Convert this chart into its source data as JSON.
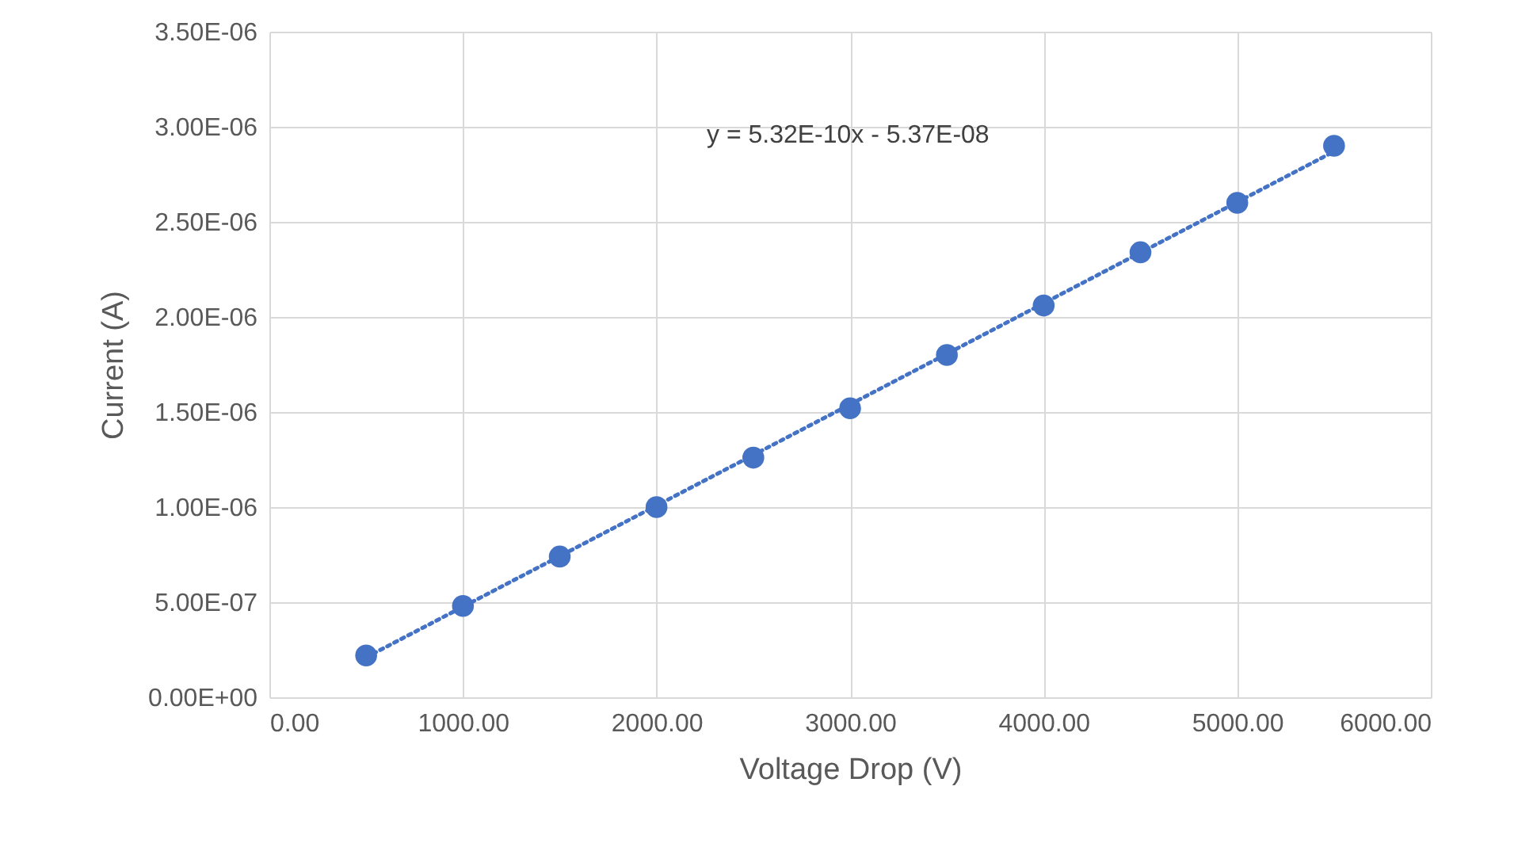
{
  "chart_data": {
    "type": "scatter",
    "xlabel": "Voltage Drop (V)",
    "ylabel": "Current (A)",
    "xlim": [
      0,
      6000
    ],
    "ylim": [
      0,
      3.5e-06
    ],
    "xticks": [
      {
        "value": 0,
        "label": "0.00"
      },
      {
        "value": 1000,
        "label": "1000.00"
      },
      {
        "value": 2000,
        "label": "2000.00"
      },
      {
        "value": 3000,
        "label": "3000.00"
      },
      {
        "value": 4000,
        "label": "4000.00"
      },
      {
        "value": 5000,
        "label": "5000.00"
      },
      {
        "value": 6000,
        "label": "6000.00"
      }
    ],
    "yticks": [
      {
        "value": 0,
        "label": "0.00E+00"
      },
      {
        "value": 5e-07,
        "label": "5.00E-07"
      },
      {
        "value": 1e-06,
        "label": "1.00E-06"
      },
      {
        "value": 1.5e-06,
        "label": "1.50E-06"
      },
      {
        "value": 2e-06,
        "label": "2.00E-06"
      },
      {
        "value": 2.5e-06,
        "label": "2.50E-06"
      },
      {
        "value": 3e-06,
        "label": "3.00E-06"
      },
      {
        "value": 3.5e-06,
        "label": "3.50E-06"
      }
    ],
    "grid": true,
    "marker": "circle",
    "annotations": [
      "y = 5.32E-10x - 5.37E-08"
    ],
    "series": [
      {
        "color": "#4472c4",
        "x": [
          500,
          1000,
          1500,
          2000,
          2500,
          3000,
          3500,
          4000,
          4500,
          5000,
          5500
        ],
        "values": [
          2.2e-07,
          4.8e-07,
          7.4e-07,
          1e-06,
          1.26e-06,
          1.52e-06,
          1.8e-06,
          2.06e-06,
          2.34e-06,
          2.6e-06,
          2.9e-06
        ]
      },
      {
        "type": "line",
        "color": "#4472c4",
        "line_style": "dotted",
        "marker": "none",
        "x": [
          500,
          5500
        ],
        "values": [
          2.1e-07,
          2.87e-06
        ]
      }
    ]
  }
}
